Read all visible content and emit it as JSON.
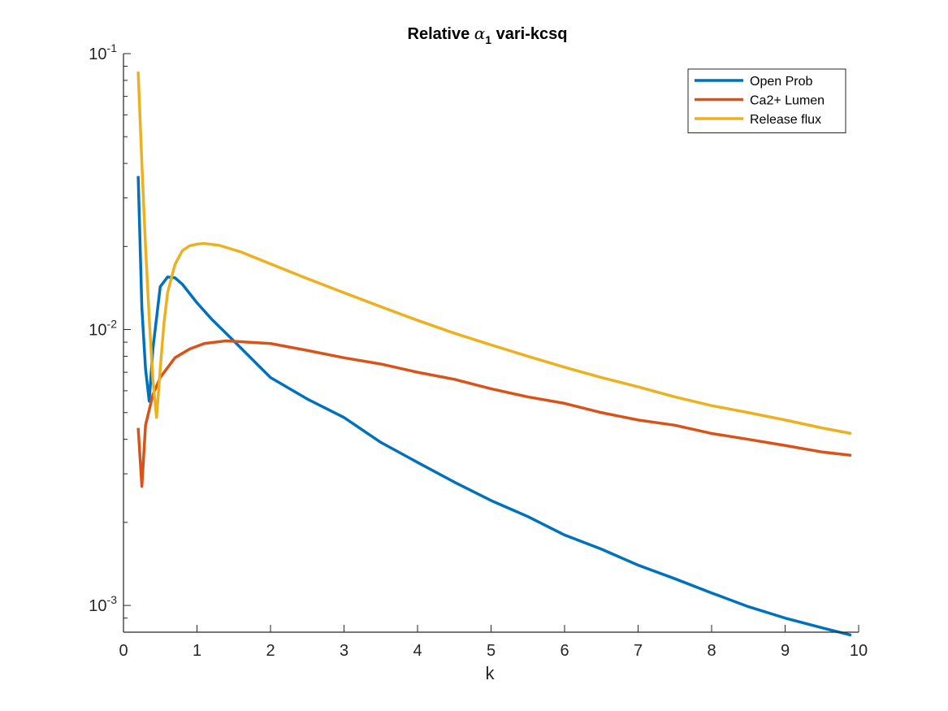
{
  "chart_data": {
    "type": "line",
    "title": "Relative α₁ vari-kcsq",
    "title_parts": {
      "prefix": "Relative ",
      "symbol": "α",
      "subscript": "1",
      "suffix": " vari-kcsq"
    },
    "xlabel": "k",
    "ylabel": "",
    "xlim": [
      0,
      10
    ],
    "ylim": [
      0.0008,
      0.1
    ],
    "yscale": "log",
    "grid": false,
    "legend_position": "top-right",
    "x_ticks": [
      0,
      1,
      2,
      3,
      4,
      5,
      6,
      7,
      8,
      9,
      10
    ],
    "x_tick_labels": [
      "0",
      "1",
      "2",
      "3",
      "4",
      "5",
      "6",
      "7",
      "8",
      "9",
      "10"
    ],
    "y_ticks": [
      {
        "value": 0.001,
        "base": "10",
        "exponent": "-3"
      },
      {
        "value": 0.01,
        "base": "10",
        "exponent": "-2"
      },
      {
        "value": 0.1,
        "base": "10",
        "exponent": "-1"
      }
    ],
    "series": [
      {
        "name": "Open Prob",
        "color": "#0072BD",
        "x": [
          0.2,
          0.25,
          0.3,
          0.35,
          0.4,
          0.5,
          0.6,
          0.7,
          0.8,
          1.0,
          1.2,
          1.5,
          2.0,
          2.5,
          3.0,
          3.5,
          4.0,
          4.5,
          5.0,
          5.5,
          6.0,
          6.5,
          7.0,
          7.5,
          8.0,
          8.5,
          9.0,
          9.5,
          9.9
        ],
        "y": [
          0.036,
          0.012,
          0.0072,
          0.0055,
          0.0085,
          0.0143,
          0.0155,
          0.0154,
          0.0146,
          0.0125,
          0.0109,
          0.0091,
          0.0067,
          0.0056,
          0.0048,
          0.0039,
          0.0033,
          0.0028,
          0.0024,
          0.0021,
          0.0018,
          0.0016,
          0.0014,
          0.00125,
          0.00111,
          0.00099,
          0.0009,
          0.00083,
          0.00078
        ]
      },
      {
        "name": "Ca2+ Lumen",
        "color": "#D95319",
        "x": [
          0.2,
          0.25,
          0.3,
          0.4,
          0.5,
          0.7,
          0.9,
          1.1,
          1.4,
          1.7,
          2.0,
          2.5,
          3.0,
          3.5,
          4.0,
          4.5,
          5.0,
          5.5,
          6.0,
          6.5,
          7.0,
          7.5,
          8.0,
          8.5,
          9.0,
          9.5,
          9.9
        ],
        "y": [
          0.0044,
          0.0027,
          0.0045,
          0.0058,
          0.0067,
          0.0079,
          0.0085,
          0.0089,
          0.0091,
          0.009,
          0.0089,
          0.0084,
          0.0079,
          0.0075,
          0.007,
          0.0066,
          0.0061,
          0.0057,
          0.0054,
          0.005,
          0.0047,
          0.0045,
          0.0042,
          0.004,
          0.0038,
          0.0036,
          0.0035
        ]
      },
      {
        "name": "Release flux",
        "color": "#EDB120",
        "x": [
          0.2,
          0.25,
          0.3,
          0.35,
          0.4,
          0.45,
          0.5,
          0.55,
          0.6,
          0.7,
          0.8,
          0.9,
          1.0,
          1.1,
          1.3,
          1.6,
          2.0,
          2.5,
          3.0,
          3.5,
          4.0,
          4.5,
          5.0,
          5.5,
          6.0,
          6.5,
          7.0,
          7.5,
          8.0,
          8.5,
          9.0,
          9.5,
          9.9
        ],
        "y": [
          0.086,
          0.04,
          0.02,
          0.011,
          0.0066,
          0.0048,
          0.0072,
          0.0105,
          0.0136,
          0.0172,
          0.0193,
          0.0201,
          0.0204,
          0.0205,
          0.0202,
          0.0191,
          0.0173,
          0.0153,
          0.0136,
          0.0121,
          0.0108,
          0.0097,
          0.0088,
          0.008,
          0.0073,
          0.0067,
          0.0062,
          0.0057,
          0.0053,
          0.005,
          0.0047,
          0.0044,
          0.0042
        ]
      }
    ]
  }
}
